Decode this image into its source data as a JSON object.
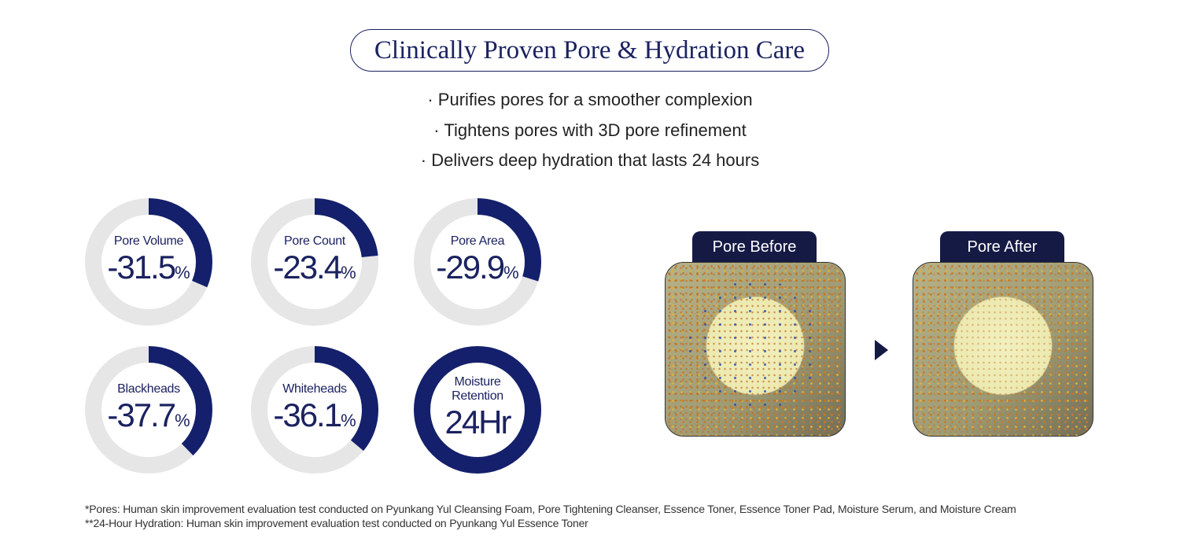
{
  "title": "Clinically Proven Pore & Hydration Care",
  "bullets": [
    "· Purifies pores for a smoother complexion",
    "· Tightens pores with 3D pore refinement",
    "· Delivers deep hydration that lasts 24 hours"
  ],
  "colors": {
    "accent": "#14206b",
    "track": "#e6e6e6",
    "tab": "#151a45"
  },
  "stats": [
    {
      "label": "Pore Volume",
      "prefix": "-",
      "number": "31.5",
      "unit": "%",
      "fill_percent": 31.5
    },
    {
      "label": "Pore Count",
      "prefix": "-",
      "number": "23.4",
      "unit": "%",
      "fill_percent": 23.4
    },
    {
      "label": "Pore Area",
      "prefix": "-",
      "number": "29.9",
      "unit": "%",
      "fill_percent": 29.9
    },
    {
      "label": "Blackheads",
      "prefix": "-",
      "number": "37.7",
      "unit": "%",
      "fill_percent": 37.7
    },
    {
      "label": "Whiteheads",
      "prefix": "-",
      "number": "36.1",
      "unit": "%",
      "fill_percent": 36.1
    },
    {
      "label": "Moisture Retention",
      "prefix": "",
      "number": "24Hr",
      "unit": "",
      "fill_percent": 100
    }
  ],
  "comparison": {
    "before_label": "Pore Before",
    "after_label": "Pore After",
    "arrow_icon": "play-triangle-icon"
  },
  "footnotes": [
    "*Pores: Human skin improvement evaluation test conducted on Pyunkang Yul Cleansing Foam, Pore Tightening Cleanser, Essence Toner, Essence Toner Pad, Moisture Serum, and Moisture Cream",
    "**24-Hour Hydration: Human skin improvement evaluation test conducted on Pyunkang Yul Essence Toner"
  ]
}
